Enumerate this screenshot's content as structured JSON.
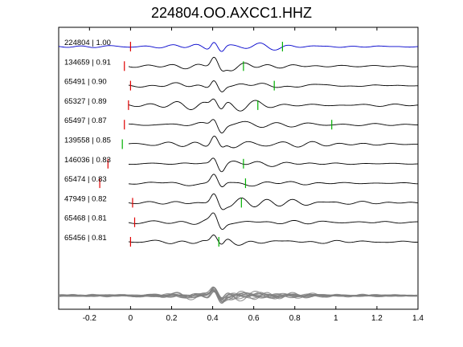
{
  "chart_data": {
    "type": "line",
    "title": "224804.OO.AXCC1.HHZ",
    "xlabel": "",
    "ylabel": "",
    "xlim": [
      -0.35,
      1.4
    ],
    "xticks": [
      -0.2,
      0,
      0.2,
      0.4,
      0.6,
      0.8,
      1,
      1.2,
      1.4
    ],
    "xtick_labels": [
      "-0.2",
      "0",
      "0.2",
      "0.4",
      "0.6",
      "0.8",
      "1",
      "1.2",
      "1.4"
    ],
    "grid": false,
    "colors": {
      "reference": "#0000cc",
      "trace": "#000000",
      "stack": "#808080",
      "pick_red": "#e00000",
      "pick_green": "#00b000"
    },
    "series": [
      {
        "name": "224804 | 1.00",
        "red_pick": 0.0,
        "green_pick": 0.74,
        "highlight": true
      },
      {
        "name": "134659 | 0.91",
        "red_pick": -0.03,
        "green_pick": 0.55
      },
      {
        "name": "65491 | 0.90",
        "red_pick": 0.0,
        "green_pick": 0.7
      },
      {
        "name": "65327 | 0.89",
        "red_pick": -0.01,
        "green_pick": 0.62
      },
      {
        "name": "65497 | 0.87",
        "red_pick": -0.03,
        "green_pick": 0.98
      },
      {
        "name": "139558 | 0.85",
        "red_pick": null,
        "green_pick": -0.04
      },
      {
        "name": "146036 | 0.83",
        "red_pick": -0.11,
        "green_pick": 0.55
      },
      {
        "name": "65474 | 0.83",
        "red_pick": -0.15,
        "green_pick": 0.56
      },
      {
        "name": "47949 | 0.82",
        "red_pick": 0.01,
        "green_pick": 0.54
      },
      {
        "name": "65468 | 0.81",
        "red_pick": 0.02,
        "green_pick": null
      },
      {
        "name": "65456 | 0.81",
        "red_pick": 0.0,
        "green_pick": 0.43
      }
    ],
    "stack": {
      "count": 11
    }
  }
}
